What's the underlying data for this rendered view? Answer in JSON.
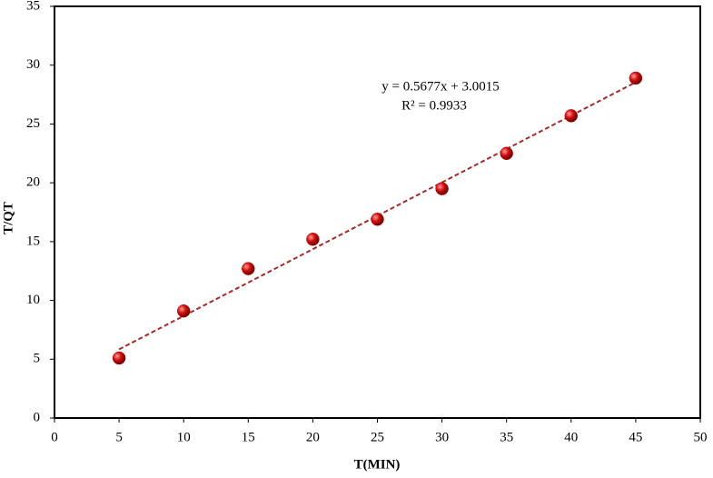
{
  "chart_data": {
    "type": "scatter",
    "x_label": "T(MIN)",
    "y_label": "T/QT",
    "x": [
      5,
      10,
      15,
      20,
      25,
      30,
      35,
      40,
      45
    ],
    "series": [
      {
        "color": "#c00000",
        "values": [
          5.1,
          9.1,
          12.7,
          15.2,
          16.9,
          19.5,
          22.5,
          25.7,
          28.9
        ]
      }
    ],
    "trendline": {
      "color": "#a52a2a",
      "x": [
        5,
        45
      ],
      "values": [
        5.84,
        28.55
      ]
    },
    "annotations": [
      "y = 0.5677x + 3.0015",
      "R² = 0.9933"
    ],
    "xlim": [
      0,
      50
    ],
    "xticks": [
      0,
      5,
      10,
      15,
      20,
      25,
      30,
      35,
      40,
      45,
      50
    ],
    "ylim": [
      0,
      35
    ],
    "yticks": [
      0,
      5,
      10,
      15,
      20,
      25,
      30,
      35
    ],
    "grid": false
  }
}
